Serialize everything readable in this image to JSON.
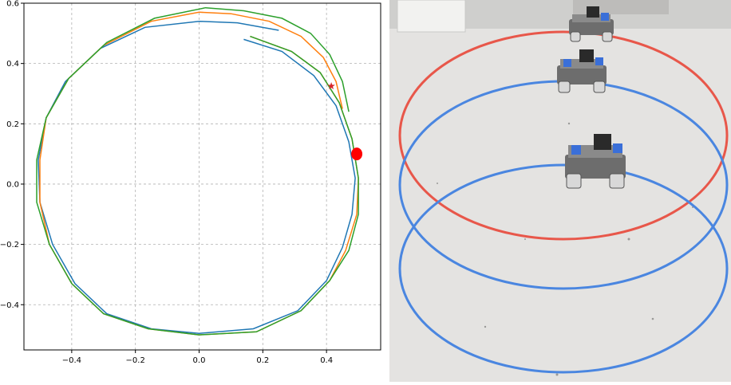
{
  "chart_data": {
    "type": "line",
    "title": "",
    "xlabel": "",
    "ylabel": "",
    "xlim": [
      -0.55,
      0.57
    ],
    "ylim": [
      -0.55,
      0.6
    ],
    "grid": true,
    "xticks": [
      -0.4,
      -0.2,
      0.0,
      0.2,
      0.4
    ],
    "yticks": [
      -0.4,
      -0.2,
      0.0,
      0.2,
      0.4,
      0.6
    ],
    "xtick_labels": [
      "−0.4",
      "−0.2",
      "0.0",
      "0.2",
      "0.4"
    ],
    "ytick_labels": [
      "−0.4",
      "−0.2",
      "0.0",
      "0.2",
      "0.4",
      "0.6"
    ],
    "series": [
      {
        "color": "#1f77b4",
        "points": [
          [
            0.14,
            0.48
          ],
          [
            0.26,
            0.44
          ],
          [
            0.36,
            0.36
          ],
          [
            0.43,
            0.26
          ],
          [
            0.47,
            0.14
          ],
          [
            0.49,
            0.02
          ],
          [
            0.48,
            -0.1
          ],
          [
            0.45,
            -0.21
          ],
          [
            0.4,
            -0.32
          ],
          [
            0.31,
            -0.42
          ],
          [
            0.17,
            -0.48
          ],
          [
            0.0,
            -0.495
          ],
          [
            -0.15,
            -0.48
          ],
          [
            -0.29,
            -0.43
          ],
          [
            -0.39,
            -0.33
          ],
          [
            -0.46,
            -0.2
          ],
          [
            -0.5,
            -0.06
          ],
          [
            -0.505,
            0.08
          ],
          [
            -0.48,
            0.22
          ],
          [
            -0.42,
            0.34
          ],
          [
            -0.31,
            0.45
          ],
          [
            -0.17,
            0.52
          ],
          [
            0.0,
            0.54
          ],
          [
            0.12,
            0.535
          ],
          [
            0.25,
            0.51
          ]
        ]
      },
      {
        "color": "#ff7f0e",
        "points": [
          [
            0.16,
            0.49
          ],
          [
            0.29,
            0.44
          ],
          [
            0.38,
            0.37
          ],
          [
            0.44,
            0.27
          ],
          [
            0.48,
            0.15
          ],
          [
            0.5,
            0.02
          ],
          [
            0.495,
            -0.1
          ],
          [
            0.46,
            -0.22
          ],
          [
            0.41,
            -0.32
          ],
          [
            0.32,
            -0.42
          ],
          [
            0.18,
            -0.49
          ],
          [
            0.0,
            -0.5
          ],
          [
            -0.16,
            -0.48
          ],
          [
            -0.3,
            -0.43
          ],
          [
            -0.4,
            -0.33
          ],
          [
            -0.47,
            -0.2
          ],
          [
            -0.5,
            -0.06
          ],
          [
            -0.5,
            0.08
          ],
          [
            -0.48,
            0.22
          ],
          [
            -0.41,
            0.35
          ],
          [
            -0.3,
            0.46
          ],
          [
            -0.15,
            0.54
          ],
          [
            0.0,
            0.57
          ],
          [
            0.1,
            0.565
          ],
          [
            0.22,
            0.54
          ],
          [
            0.32,
            0.49
          ],
          [
            0.39,
            0.42
          ],
          [
            0.43,
            0.34
          ],
          [
            0.45,
            0.25
          ]
        ]
      },
      {
        "color": "#2ca02c",
        "points": [
          [
            0.16,
            0.49
          ],
          [
            0.29,
            0.44
          ],
          [
            0.38,
            0.37
          ],
          [
            0.44,
            0.27
          ],
          [
            0.48,
            0.15
          ],
          [
            0.5,
            0.02
          ],
          [
            0.5,
            -0.1
          ],
          [
            0.47,
            -0.22
          ],
          [
            0.41,
            -0.32
          ],
          [
            0.32,
            -0.42
          ],
          [
            0.18,
            -0.49
          ],
          [
            0.0,
            -0.5
          ],
          [
            -0.16,
            -0.48
          ],
          [
            -0.3,
            -0.43
          ],
          [
            -0.4,
            -0.33
          ],
          [
            -0.47,
            -0.2
          ],
          [
            -0.51,
            -0.06
          ],
          [
            -0.51,
            0.08
          ],
          [
            -0.48,
            0.22
          ],
          [
            -0.41,
            0.35
          ],
          [
            -0.29,
            0.47
          ],
          [
            -0.14,
            0.55
          ],
          [
            0.02,
            0.585
          ],
          [
            0.14,
            0.575
          ],
          [
            0.26,
            0.55
          ],
          [
            0.35,
            0.5
          ],
          [
            0.41,
            0.43
          ],
          [
            0.45,
            0.34
          ],
          [
            0.47,
            0.24
          ]
        ]
      }
    ],
    "markers": [
      {
        "shape": "circle",
        "color": "#ff0000",
        "x": 0.495,
        "y": 0.1
      },
      {
        "shape": "star",
        "color": "#d62728",
        "x": 0.415,
        "y": 0.325
      }
    ]
  },
  "photo": {
    "description_colors": {
      "floor": "#e6e5e3",
      "red_ring": "#e8574a",
      "blue_ring": "#4a86e0"
    }
  }
}
